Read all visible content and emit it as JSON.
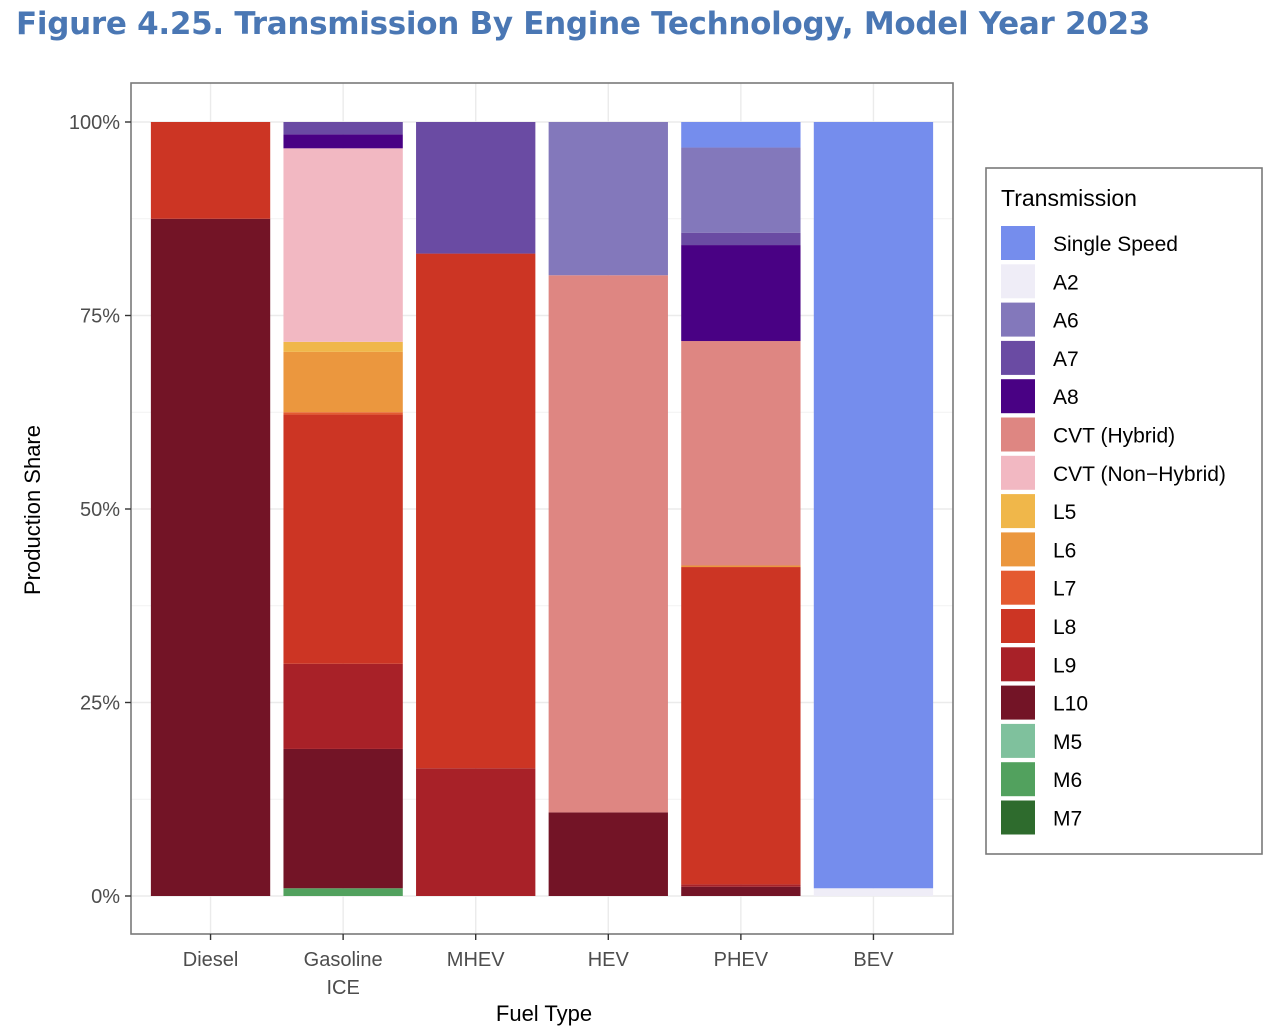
{
  "title": "Figure 4.25. Transmission By Engine Technology, Model Year 2023",
  "chart_data": {
    "type": "bar",
    "stacked": true,
    "xlabel": "Fuel Type",
    "ylabel": "Production Share",
    "ylim": [
      0,
      1
    ],
    "yticks": [
      {
        "value": 0,
        "label": "0%"
      },
      {
        "value": 0.25,
        "label": "25%"
      },
      {
        "value": 0.5,
        "label": "50%"
      },
      {
        "value": 0.75,
        "label": "75%"
      },
      {
        "value": 1,
        "label": "100%"
      }
    ],
    "grid": true,
    "legend_position": "right",
    "legend_title": "Transmission",
    "categories": [
      {
        "key": "diesel",
        "label": [
          "Diesel"
        ]
      },
      {
        "key": "gasoline-ice",
        "label": [
          "Gasoline",
          "ICE"
        ]
      },
      {
        "key": "mhev",
        "label": [
          "MHEV"
        ]
      },
      {
        "key": "hev",
        "label": [
          "HEV"
        ]
      },
      {
        "key": "phev",
        "label": [
          "PHEV"
        ]
      },
      {
        "key": "bev",
        "label": [
          "BEV"
        ]
      }
    ],
    "series": [
      {
        "name": "Single Speed",
        "color": "#758ded",
        "values": [
          0,
          0,
          0,
          0,
          0.033,
          0.99
        ]
      },
      {
        "name": "A2",
        "color": "#efedf7",
        "values": [
          0,
          0,
          0,
          0,
          0,
          0.01
        ]
      },
      {
        "name": "A6",
        "color": "#8378bb",
        "values": [
          0,
          0,
          0,
          0.198,
          0.11,
          0
        ]
      },
      {
        "name": "A7",
        "color": "#6a4ba3",
        "values": [
          0,
          0.016,
          0.17,
          0,
          0.016,
          0
        ]
      },
      {
        "name": "A8",
        "color": "#490184",
        "values": [
          0,
          0.018,
          0,
          0,
          0.124,
          0
        ]
      },
      {
        "name": "CVT (Hybrid)",
        "color": "#de8682",
        "values": [
          0,
          0,
          0,
          0.694,
          0.29,
          0
        ]
      },
      {
        "name": "CVT (Non−Hybrid)",
        "color": "#f2b8c2",
        "values": [
          0,
          0.25,
          0,
          0,
          0,
          0
        ]
      },
      {
        "name": "L5",
        "color": "#f0b74a",
        "values": [
          0,
          0.013,
          0,
          0,
          0,
          0
        ]
      },
      {
        "name": "L6",
        "color": "#eb973e",
        "values": [
          0,
          0.078,
          0,
          0,
          0.002,
          0
        ]
      },
      {
        "name": "L7",
        "color": "#e45a30",
        "values": [
          0,
          0.003,
          0,
          0,
          0,
          0
        ]
      },
      {
        "name": "L8",
        "color": "#cc3524",
        "values": [
          0.125,
          0.322,
          0.665,
          0,
          0.41,
          0
        ]
      },
      {
        "name": "L9",
        "color": "#a82128",
        "values": [
          0,
          0.11,
          0.165,
          0,
          0.003,
          0
        ]
      },
      {
        "name": "L10",
        "color": "#731426",
        "values": [
          0.875,
          0.18,
          0,
          0.108,
          0.012,
          0
        ]
      },
      {
        "name": "M5",
        "color": "#7fc19d",
        "values": [
          0,
          0,
          0,
          0,
          0,
          0
        ]
      },
      {
        "name": "M6",
        "color": "#52a15e",
        "values": [
          0,
          0.01,
          0,
          0,
          0,
          0
        ]
      },
      {
        "name": "M7",
        "color": "#2e6b2d",
        "values": [
          0,
          0,
          0,
          0,
          0,
          0
        ]
      }
    ]
  }
}
